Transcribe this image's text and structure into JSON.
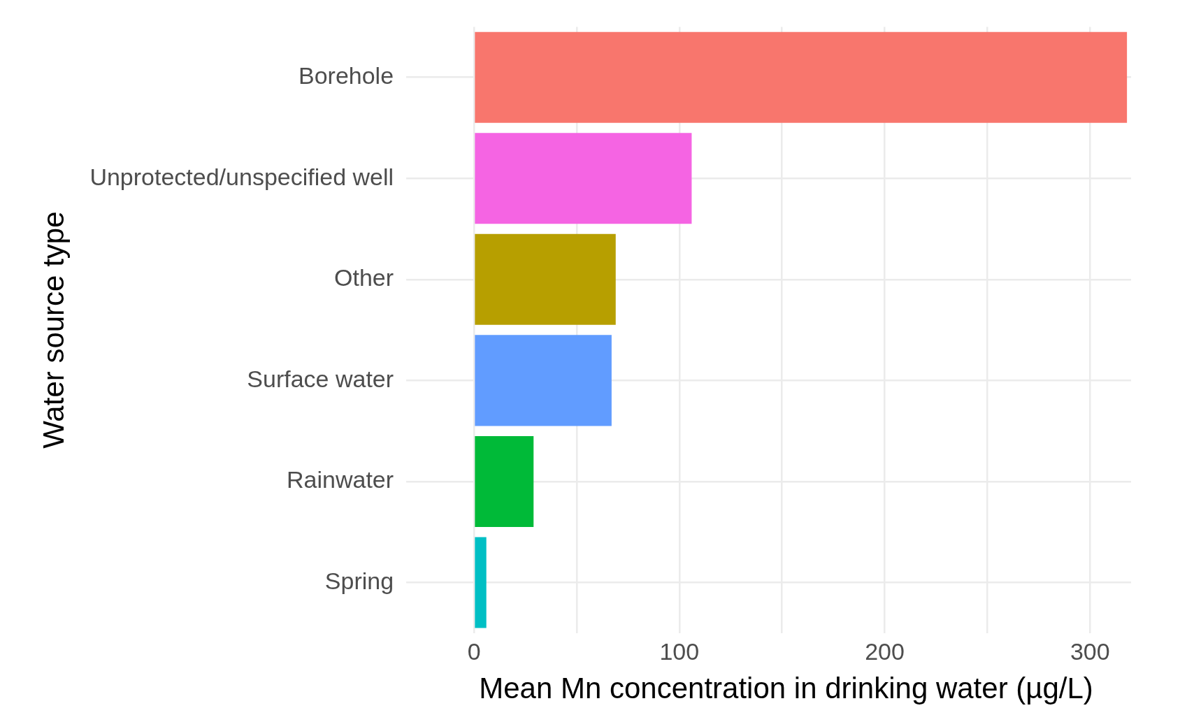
{
  "chart_data": {
    "type": "bar",
    "orientation": "horizontal",
    "xlabel": "Mean Mn concentration in drinking water (µg/L)",
    "ylabel": "Water source type",
    "categories": [
      "Borehole",
      "Unprotected/unspecified well",
      "Other",
      "Surface water",
      "Rainwater",
      "Spring"
    ],
    "values": [
      318,
      106,
      69,
      67,
      29,
      6
    ],
    "colors": [
      "#f8766d",
      "#f564e3",
      "#b79f00",
      "#619cff",
      "#00ba38",
      "#00bfc4"
    ],
    "xlim": [
      -16,
      320
    ],
    "xticks": [
      0,
      {
        "value": 50,
        "label": null
      },
      100,
      {
        "value": 150,
        "label": null
      },
      200,
      {
        "value": 250,
        "label": null
      },
      300
    ],
    "grid": true
  }
}
